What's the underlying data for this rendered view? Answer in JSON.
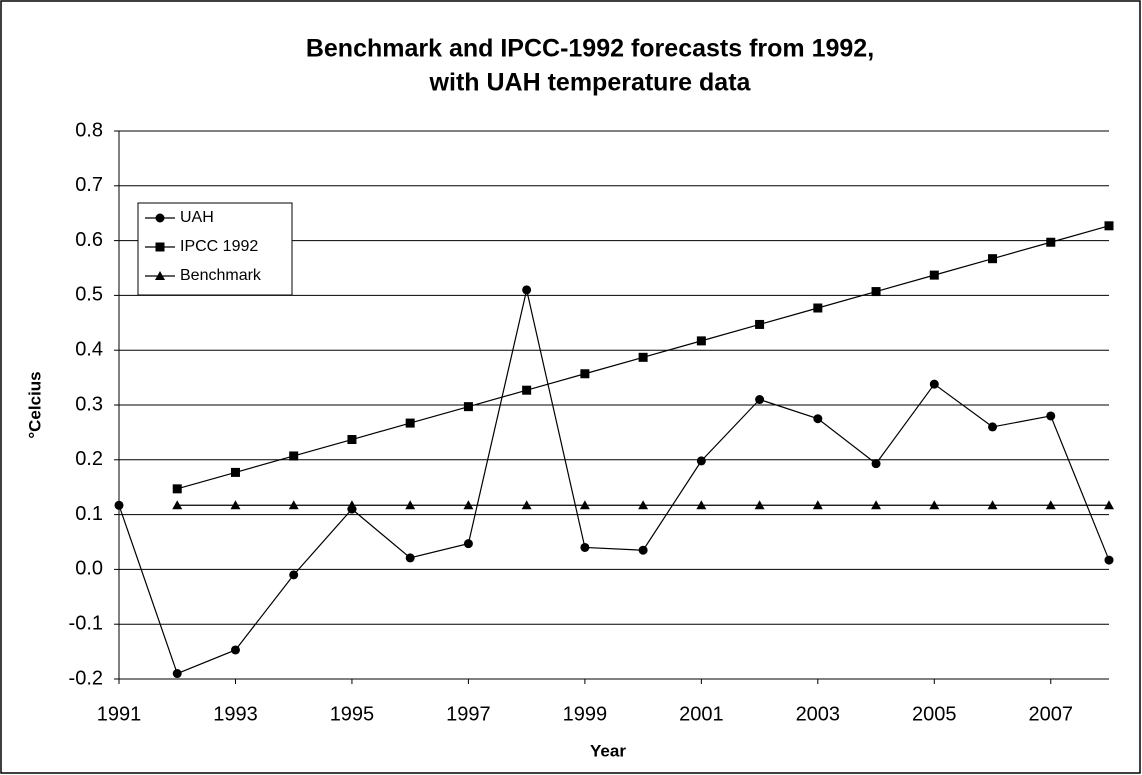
{
  "chart_data": {
    "type": "line",
    "title": [
      "Benchmark and IPCC-1992 forecasts from 1992,",
      "with UAH temperature data"
    ],
    "x_label": "Year",
    "y_label": "°Celcius",
    "x": [
      1991,
      1992,
      1993,
      1994,
      1995,
      1996,
      1997,
      1998,
      1999,
      2000,
      2001,
      2002,
      2003,
      2004,
      2005,
      2006,
      2007,
      2008
    ],
    "series": [
      {
        "name": "UAH",
        "color": "#000000",
        "marker": "circle",
        "values": [
          0.117,
          -0.19,
          -0.147,
          -0.01,
          0.11,
          0.021,
          0.047,
          0.51,
          0.04,
          0.035,
          0.198,
          0.31,
          0.275,
          0.193,
          0.338,
          0.26,
          0.28,
          0.017
        ]
      },
      {
        "name": "IPCC 1992",
        "color": "#000000",
        "marker": "square",
        "values": [
          null,
          0.147,
          0.177,
          0.207,
          0.237,
          0.267,
          0.297,
          0.327,
          0.357,
          0.387,
          0.417,
          0.447,
          0.477,
          0.507,
          0.537,
          0.567,
          0.597,
          0.627
        ]
      },
      {
        "name": "Benchmark",
        "color": "#000000",
        "marker": "triangle",
        "values": [
          null,
          0.117,
          0.117,
          0.117,
          0.117,
          0.117,
          0.117,
          0.117,
          0.117,
          0.117,
          0.117,
          0.117,
          0.117,
          0.117,
          0.117,
          0.117,
          0.117,
          0.117
        ]
      }
    ],
    "xlim": [
      1991,
      2008
    ],
    "xticks": [
      1991,
      1993,
      1995,
      1997,
      1999,
      2001,
      2003,
      2005,
      2007
    ],
    "ylim": [
      -0.2,
      0.8
    ],
    "yticks": [
      -0.2,
      -0.1,
      {
        "value": 0,
        "label": "0.0"
      },
      0.1,
      0.2,
      0.3,
      0.4,
      0.5,
      0.6,
      0.7,
      0.8
    ],
    "grid": true,
    "legend": "upper-left"
  }
}
